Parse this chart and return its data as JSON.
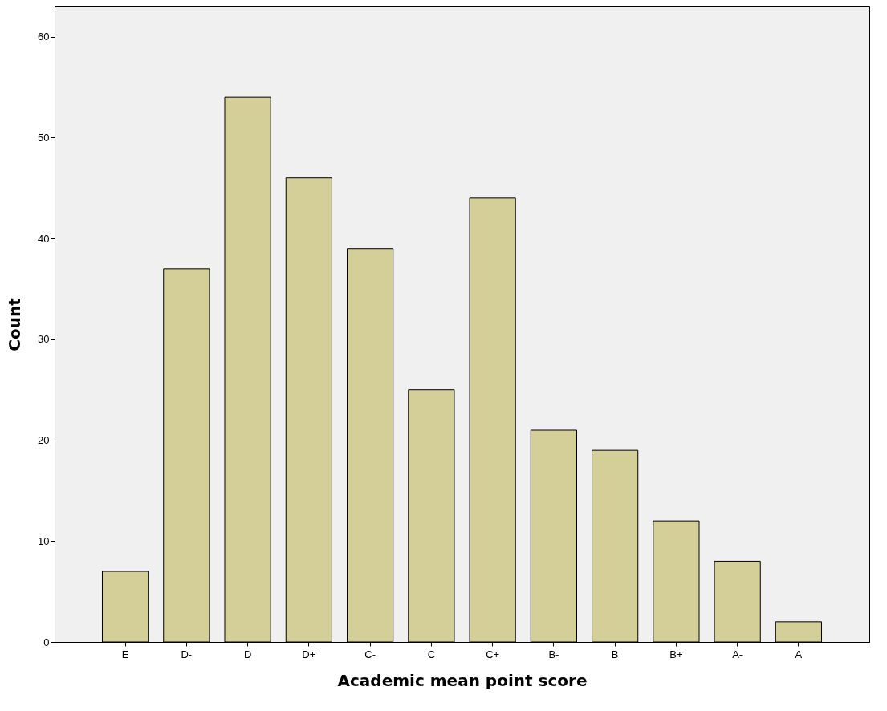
{
  "chart_data": {
    "type": "bar",
    "xlabel": "Academic mean point score",
    "ylabel": "Count",
    "categories": [
      "E",
      "D-",
      "D",
      "D+",
      "C-",
      "C",
      "C+",
      "B-",
      "B",
      "B+",
      "A-",
      "A"
    ],
    "values": [
      7,
      37,
      54,
      46,
      39,
      25,
      44,
      21,
      19,
      12,
      8,
      2
    ],
    "color": "#d4cf98",
    "ylim": [
      0,
      63
    ],
    "yticks": [
      0,
      10,
      20,
      30,
      40,
      50,
      60
    ],
    "grid": false
  }
}
